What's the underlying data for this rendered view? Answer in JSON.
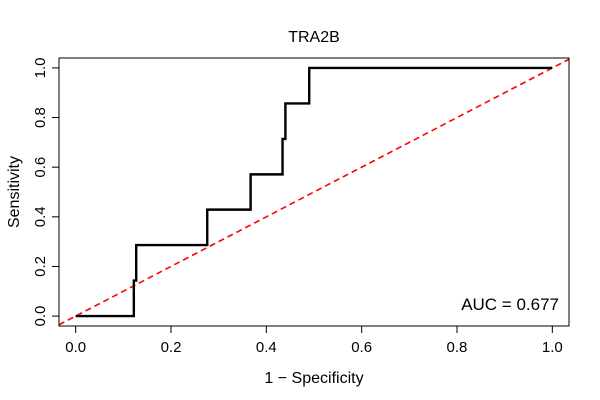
{
  "chart_data": {
    "type": "line",
    "title": "TRA2B",
    "xlabel": "1 − Specificity",
    "ylabel": "Sensitivity",
    "xlim": [
      -0.035,
      1.035
    ],
    "ylim": [
      -0.04,
      1.04
    ],
    "x_ticks": [
      0.0,
      0.2,
      0.4,
      0.6,
      0.8,
      1.0
    ],
    "x_tick_labels": [
      "0.0",
      "0.2",
      "0.4",
      "0.6",
      "0.8",
      "1.0"
    ],
    "y_ticks": [
      0.0,
      0.2,
      0.4,
      0.6,
      0.8,
      1.0
    ],
    "y_tick_labels": [
      "0.0",
      "0.2",
      "0.4",
      "0.6",
      "0.8",
      "1.0"
    ],
    "grid": false,
    "annotation": "AUC = 0.677",
    "series": [
      {
        "name": "ROC curve",
        "color": "#000000",
        "x": [
          0.0,
          0.122,
          0.122,
          0.127,
          0.127,
          0.276,
          0.276,
          0.367,
          0.367,
          0.434,
          0.434,
          0.44,
          0.44,
          0.49,
          0.49,
          1.0
        ],
        "y": [
          0.0,
          0.0,
          0.143,
          0.143,
          0.286,
          0.286,
          0.429,
          0.429,
          0.571,
          0.571,
          0.714,
          0.714,
          0.857,
          0.857,
          1.0,
          1.0
        ]
      },
      {
        "name": "reference diagonal",
        "color": "#ff0000",
        "dashed": true,
        "x": [
          -0.035,
          1.035
        ],
        "y": [
          -0.035,
          1.035
        ]
      }
    ]
  }
}
